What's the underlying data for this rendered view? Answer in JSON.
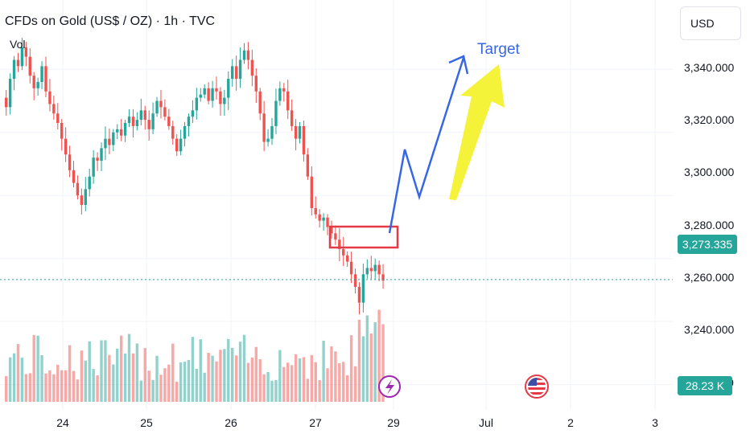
{
  "header": {
    "title": "CFDs on Gold (US$ / OZ) · 1h · TVC",
    "vol_label": "Vol"
  },
  "currency": "USD",
  "price_axis": {
    "labels": [
      "3,340.000",
      "3,320.000",
      "3,300.000",
      "3,280.000",
      "3,260.000",
      "3,240.000",
      "0"
    ],
    "current_price": "3,273.335",
    "volume_value": "28.23 K"
  },
  "time_axis": {
    "labels": [
      "24",
      "25",
      "26",
      "27",
      "29",
      "Jul",
      "2",
      "3"
    ]
  },
  "annotations": {
    "target_label": "Target"
  },
  "colors": {
    "up": "#26a69a",
    "down": "#ef5350",
    "arrow_blue": "#3767e6",
    "arrow_yellow": "#f5f23a",
    "box_red": "#e53946"
  },
  "icons": [
    "lightning-event-icon",
    "us-flag-event-icon"
  ],
  "chart_data": {
    "type": "candlestick",
    "ylim": [
      3232,
      3362
    ],
    "series": [
      {
        "values": [
          3328,
          3337,
          3343,
          3341,
          3347,
          3344,
          3338,
          3334,
          3336,
          3341,
          3333,
          3329,
          3326,
          3323,
          3318,
          3313,
          3308,
          3304,
          3300,
          3297,
          3302,
          3306,
          3312,
          3311,
          3315,
          3318,
          3316,
          3320,
          3321,
          3319,
          3323,
          3325,
          3322,
          3324,
          3327,
          3324,
          3321,
          3326,
          3330,
          3328,
          3325,
          3322,
          3318,
          3314,
          3318,
          3322,
          3325,
          3327,
          3331,
          3332,
          3334,
          3330,
          3334,
          3333,
          3329,
          3331,
          3337,
          3341,
          3337,
          3343,
          3346,
          3343,
          3338,
          3333,
          3326,
          3317,
          3318,
          3322,
          3330,
          3334,
          3333,
          3327,
          3322,
          3318,
          3322,
          3313,
          3306,
          3296,
          3294,
          3292,
          3293,
          3290,
          3288,
          3286,
          3283,
          3281,
          3279,
          3275,
          3271,
          3266,
          3275,
          3277,
          3276,
          3278,
          3275,
          3273
        ]
      }
    ]
  }
}
